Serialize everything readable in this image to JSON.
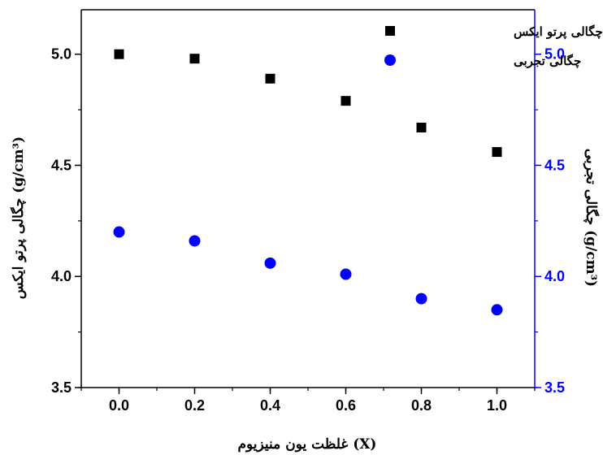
{
  "chart_data": {
    "type": "scatter",
    "x": [
      0.0,
      0.2,
      0.4,
      0.6,
      0.8,
      1.0
    ],
    "xlabel": "غلظت یون منیزیوم (X)",
    "xlim": [
      -0.1,
      1.1
    ],
    "xticks": [
      "0.0",
      "0.2",
      "0.4",
      "0.6",
      "0.8",
      "1.0"
    ],
    "ylim": [
      3.5,
      5.2
    ],
    "yticks": [
      "3.5",
      "4.0",
      "4.5",
      "5.0"
    ],
    "ylabel_left": "چگالی پرتو ایکس (g/cm³)",
    "ylabel_right": "چگالی تجربی (g/cm³)",
    "grid": false,
    "legend_position": "top-right",
    "legend_dot": ".",
    "series": [
      {
        "name": "چگالی پرتو ایکس",
        "marker": "square",
        "color": "#000000",
        "axis": "left",
        "values": [
          5.0,
          4.98,
          4.89,
          4.79,
          4.67,
          4.56
        ]
      },
      {
        "name": "چگالی تجربی",
        "marker": "circle",
        "color": "#0000ff",
        "axis": "right",
        "values": [
          4.2,
          4.16,
          4.06,
          4.01,
          3.9,
          3.85
        ]
      }
    ],
    "left_axis_color": "#000000",
    "right_axis_color": "#0000ff"
  }
}
